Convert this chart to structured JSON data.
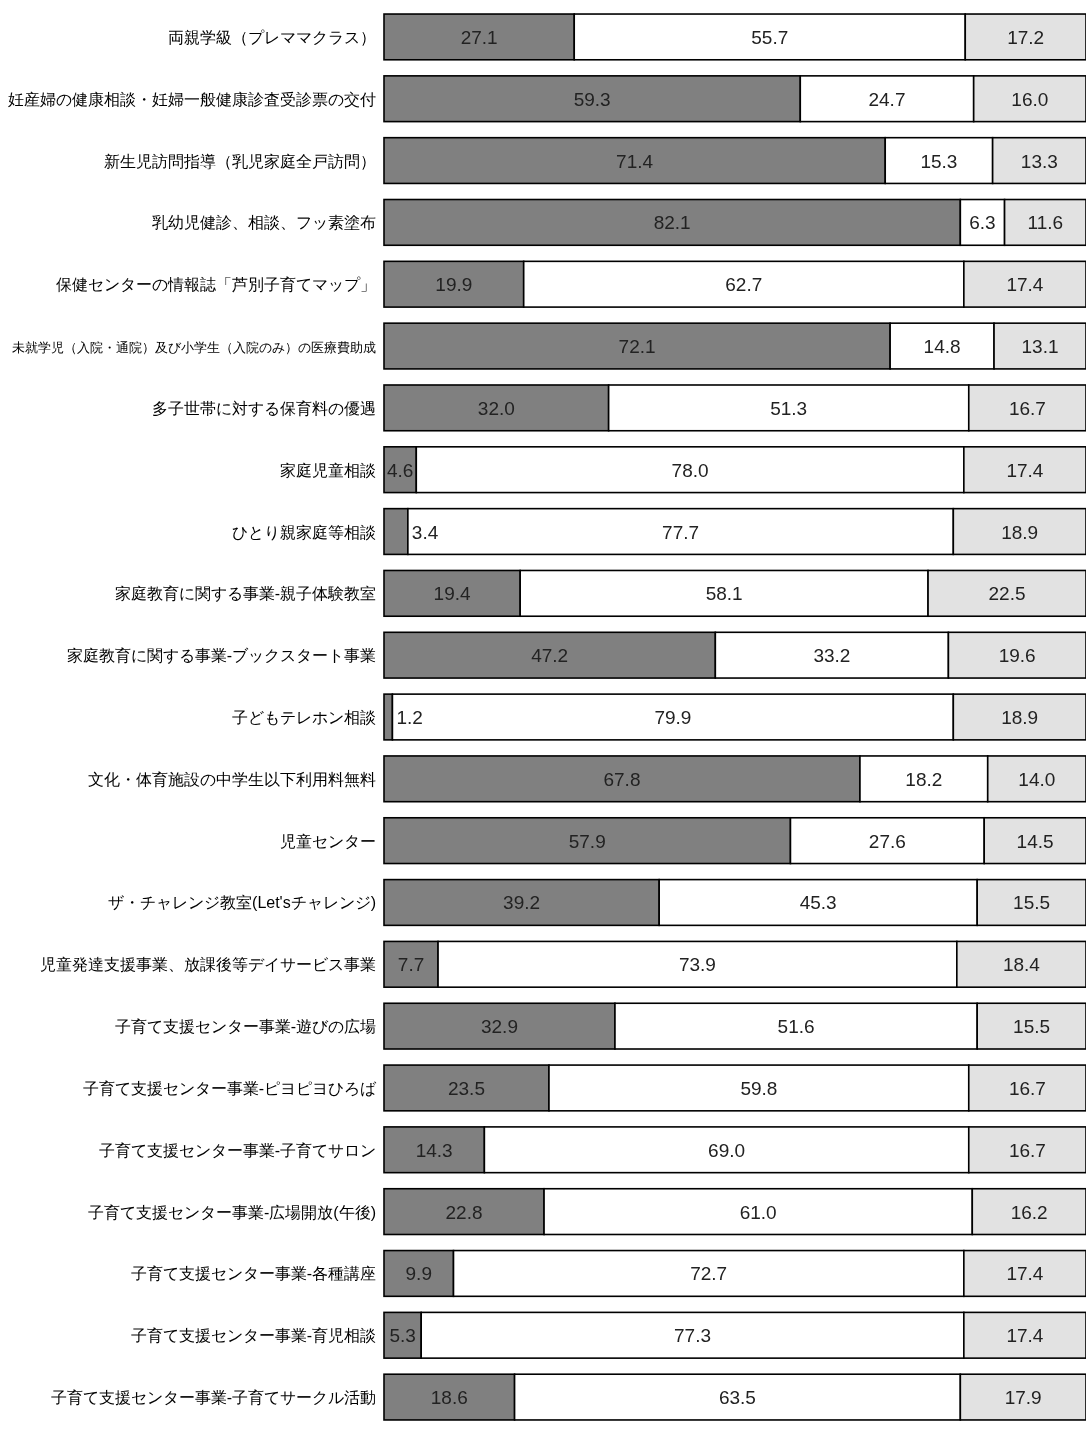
{
  "chart_data": {
    "type": "bar",
    "orientation": "horizontal",
    "stacked": true,
    "tick_labels": "y",
    "xlim": [
      0,
      100
    ],
    "categories": [
      "両親学級（プレママクラス）",
      "妊産婦の健康相談・妊婦一般健康診査受診票の交付",
      "新生児訪問指導（乳児家庭全戸訪問）",
      "乳幼児健診、相談、フッ素塗布",
      "保健センターの情報誌「芦別子育てマップ」",
      "未就学児（入院・通院）及び小学生（入院のみ）の医療費助成",
      "多子世帯に対する保育料の優遇",
      "家庭児童相談",
      "ひとり親家庭等相談",
      "家庭教育に関する事業-親子体験教室",
      "家庭教育に関する事業-ブックスタート事業",
      "子どもテレホン相談",
      "文化・体育施設の中学生以下利用料無料",
      "児童センター",
      "ザ・チャレンジ教室(Let'sチャレンジ)",
      "児童発達支援事業、放課後等デイサービス事業",
      "子育て支援センター事業-遊びの広場",
      "子育て支援センター事業-ピヨピヨひろば",
      "子育て支援センター事業-子育てサロン",
      "子育て支援センター事業-広場開放(午後)",
      "子育て支援センター事業-各種講座",
      "子育て支援センター事業-育児相談",
      "子育て支援センター事業-子育てサークル活動"
    ],
    "series": [
      {
        "color": "#808080",
        "values": [
          27.1,
          59.3,
          71.4,
          82.1,
          19.9,
          72.1,
          32.0,
          4.6,
          3.4,
          19.4,
          47.2,
          1.2,
          67.8,
          57.9,
          39.2,
          7.7,
          32.9,
          23.5,
          14.3,
          22.8,
          9.9,
          5.3,
          18.6
        ],
        "value_labels": [
          "27.1",
          "59.3",
          "71.4",
          "82.1",
          "19.9",
          "72.1",
          "32.0",
          "4.6",
          "3.4",
          "19.4",
          "47.2",
          "1.2",
          "67.8",
          "57.9",
          "39.2",
          "7.7",
          "32.9",
          "23.5",
          "14.3",
          "22.8",
          "9.9",
          "5.3",
          "18.6"
        ]
      },
      {
        "color": "#ffffff",
        "values": [
          55.7,
          24.7,
          15.3,
          6.3,
          62.7,
          14.8,
          51.3,
          78.0,
          77.7,
          58.1,
          33.2,
          79.9,
          18.2,
          27.6,
          45.3,
          73.9,
          51.6,
          59.8,
          69.0,
          61.0,
          72.7,
          77.3,
          63.5
        ],
        "value_labels": [
          "55.7",
          "24.7",
          "15.3",
          "6.3",
          "62.7",
          "14.8",
          "51.3",
          "78.0",
          "77.7",
          "58.1",
          "33.2",
          "79.9",
          "18.2",
          "27.6",
          "45.3",
          "73.9",
          "51.6",
          "59.8",
          "69.0",
          "61.0",
          "72.7",
          "77.3",
          "63.5"
        ]
      },
      {
        "color": "#e2e2e2",
        "values": [
          17.2,
          16.0,
          13.3,
          11.6,
          17.4,
          13.1,
          16.7,
          17.4,
          18.9,
          22.5,
          19.6,
          18.9,
          14.0,
          14.5,
          15.5,
          18.4,
          15.5,
          16.7,
          16.7,
          16.2,
          17.4,
          17.4,
          17.9
        ],
        "value_labels": [
          "17.2",
          "16.0",
          "13.3",
          "11.6",
          "17.4",
          "13.1",
          "16.7",
          "17.4",
          "18.9",
          "22.5",
          "19.6",
          "18.9",
          "14.0",
          "14.5",
          "15.5",
          "18.4",
          "15.5",
          "16.7",
          "16.7",
          "16.2",
          "17.4",
          "17.4",
          "17.9"
        ]
      }
    ]
  }
}
